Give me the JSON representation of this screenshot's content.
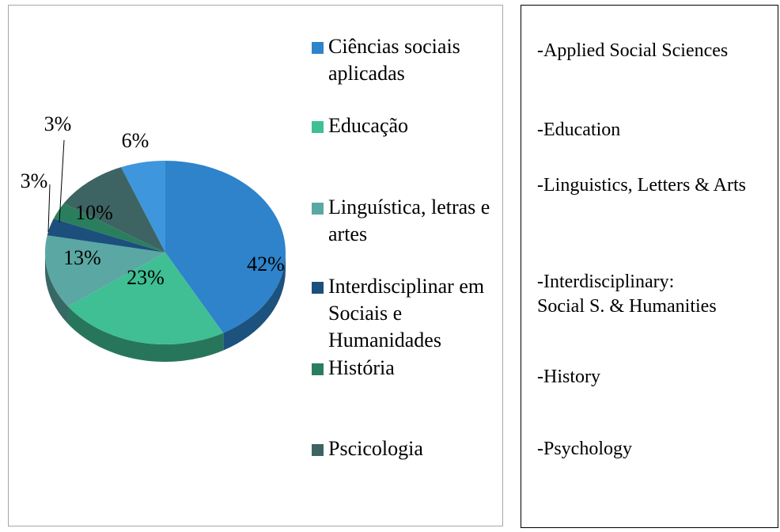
{
  "chart_data": {
    "type": "pie",
    "categories": [
      "Ciências sociais aplicadas",
      "Educação",
      "Linguística, letras e artes",
      "Interdisciplinar em Sociais e Humanidades",
      "História",
      "Pscicologia",
      null
    ],
    "values": [
      42,
      23,
      13,
      3,
      3,
      10,
      6
    ],
    "value_labels": [
      "42%",
      "23%",
      "13%",
      "3%",
      "3%",
      "10%",
      "6%"
    ],
    "colors": [
      "#2e83cb",
      "#3fbf93",
      "#5ba7a3",
      "#1c4f7c",
      "#2a7e5e",
      "#3d6462",
      "#3e96dd"
    ],
    "legend": "right"
  },
  "translations": [
    "-Applied Social Sciences",
    "-Education",
    "-Linguistics, Letters & Arts",
    "-Interdisciplinary:\nSocial S. & Humanities",
    "-History",
    "-Psychology"
  ]
}
